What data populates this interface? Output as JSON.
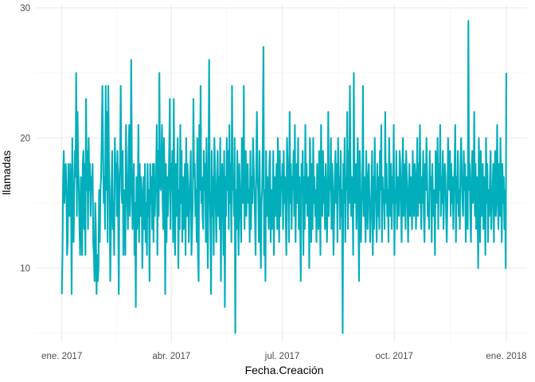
{
  "chart_data": {
    "type": "line",
    "title": "",
    "xlabel": "Fecha.Creación",
    "ylabel": "llamadas",
    "x_type": "date",
    "xlim": [
      "2016-12-10",
      "2018-01-18"
    ],
    "ylim": [
      4.3,
      30.3
    ],
    "grid": true,
    "legend": "none",
    "x_ticks": [
      {
        "date": "2017-01-01",
        "label": "ene. 2017"
      },
      {
        "date": "2017-04-01",
        "label": "abr. 2017"
      },
      {
        "date": "2017-07-01",
        "label": "jul. 2017"
      },
      {
        "date": "2017-10-01",
        "label": "oct. 2017"
      },
      {
        "date": "2018-01-01",
        "label": "ene. 2018"
      }
    ],
    "x_minor_ticks": [
      "2017-02-15",
      "2017-05-16",
      "2017-08-16",
      "2017-11-16"
    ],
    "y_ticks": [
      10,
      20,
      30
    ],
    "y_minor_ticks": [
      5,
      15,
      25
    ],
    "series": [
      {
        "color": "#00aebc",
        "start_date": "2017-01-01",
        "end_date": "2018-01-01",
        "values": [
          8,
          11,
          17,
          19,
          15,
          17,
          18,
          16,
          11,
          12,
          18,
          15,
          14,
          18,
          16,
          8,
          20,
          14,
          12,
          16,
          19,
          17,
          25,
          14,
          22,
          18,
          16,
          13,
          11,
          17,
          14,
          11,
          18,
          19,
          13,
          18,
          11,
          23,
          16,
          19,
          13,
          20,
          16,
          18,
          14,
          17,
          16,
          18,
          12,
          11,
          9,
          15,
          13,
          8,
          11,
          9,
          10,
          16,
          12,
          16,
          17,
          20,
          24,
          19,
          15,
          17,
          13,
          24,
          16,
          22,
          12,
          24,
          18,
          16,
          9,
          13,
          16,
          19,
          13,
          15,
          11,
          20,
          17,
          18,
          14,
          19,
          15,
          8,
          17,
          18,
          24,
          16,
          15,
          19,
          11,
          14,
          16,
          11,
          21,
          17,
          15,
          13,
          19,
          21,
          14,
          16,
          26,
          18,
          13,
          16,
          18,
          11,
          15,
          7,
          17,
          13,
          15,
          21,
          12,
          18,
          14,
          17,
          16,
          10,
          14,
          17,
          13,
          18,
          12,
          15,
          11,
          18,
          14,
          16,
          9,
          18,
          15,
          17,
          13,
          18,
          12,
          18,
          14,
          16,
          17,
          21,
          11,
          19,
          14,
          25,
          17,
          16,
          18,
          21,
          15,
          13,
          20,
          17,
          8,
          18,
          12,
          17,
          14,
          16,
          19,
          23,
          13,
          18,
          16,
          19,
          12,
          23,
          16,
          11,
          18,
          14,
          17,
          20,
          10,
          16,
          13,
          21,
          15,
          19,
          12,
          17,
          13,
          15,
          18,
          11,
          20,
          14,
          18,
          16,
          12,
          15,
          17,
          19,
          11,
          13,
          15,
          23,
          17,
          18,
          14,
          16,
          12,
          20,
          11,
          9,
          21,
          16,
          24,
          15,
          17,
          14,
          13,
          19,
          16,
          18,
          12,
          20,
          15,
          10,
          17,
          26,
          16,
          13,
          8,
          19,
          14,
          17,
          11,
          20,
          18,
          15,
          12,
          16,
          19,
          14,
          17,
          13,
          20,
          9,
          16,
          18,
          15,
          11,
          19,
          7,
          17,
          14,
          20,
          16,
          19,
          13,
          21,
          15,
          18,
          12,
          24,
          16,
          17,
          14,
          20,
          5,
          16,
          13,
          19,
          15,
          11,
          18,
          16,
          14,
          12,
          20,
          17,
          15,
          24,
          13,
          16,
          19,
          14,
          17,
          18,
          15,
          16,
          12,
          19,
          13,
          17,
          15,
          20,
          18,
          16,
          14,
          11,
          18,
          22,
          17,
          16,
          12,
          19,
          14,
          10,
          15,
          16,
          20,
          27,
          11,
          16,
          9,
          19,
          14,
          17,
          15,
          13,
          18,
          19,
          12,
          16,
          13,
          15,
          19,
          11,
          17,
          14,
          16,
          18,
          13,
          20,
          15,
          12,
          19,
          14,
          17,
          16,
          18,
          13,
          19,
          15,
          17,
          14,
          11,
          20,
          18,
          16,
          12,
          22,
          15,
          18,
          13,
          17,
          16,
          19,
          14,
          21,
          12,
          16,
          18,
          15,
          20,
          13,
          17,
          14,
          9,
          18,
          16,
          19,
          11,
          17,
          13,
          21,
          15,
          18,
          14,
          16,
          17,
          10,
          20,
          17,
          12,
          18,
          13,
          20,
          15,
          17,
          14,
          16,
          12,
          18,
          15,
          13,
          19,
          17,
          11,
          21,
          16,
          14,
          19,
          15,
          17,
          13,
          18,
          16,
          12,
          15,
          22,
          14,
          17,
          16,
          20,
          13,
          18,
          16,
          11,
          14,
          17,
          19,
          15,
          18,
          12,
          20,
          16,
          17,
          13,
          19,
          14,
          16,
          5,
          18,
          15,
          20,
          12,
          17,
          16,
          22,
          13,
          19,
          15,
          24,
          18,
          14,
          17,
          16,
          11,
          25,
          15,
          17,
          18,
          13,
          16,
          20,
          14,
          9,
          19,
          17,
          12,
          15,
          16,
          24,
          14,
          17,
          15,
          12,
          19,
          16,
          13,
          17,
          18,
          15,
          12,
          14,
          16,
          19,
          11,
          17,
          13,
          20,
          16,
          15,
          12,
          18,
          14,
          17,
          13,
          19,
          16,
          21,
          12,
          17,
          15,
          16,
          13,
          22,
          15,
          18,
          14,
          16,
          12,
          20,
          17,
          14,
          18,
          13,
          17,
          15,
          21,
          11,
          16,
          15,
          19,
          13,
          17,
          16,
          14,
          19,
          18,
          15,
          12,
          17,
          20,
          14,
          16,
          18,
          13,
          19,
          17,
          15,
          12,
          16,
          18,
          14,
          17,
          15,
          13,
          19,
          16,
          14,
          18,
          17,
          13,
          16,
          20,
          14,
          18,
          15,
          21,
          16,
          13,
          17,
          15,
          19,
          14,
          12,
          18,
          16,
          20,
          17,
          14,
          15,
          13,
          19,
          16,
          17,
          12,
          18,
          15,
          14,
          16,
          11,
          19,
          17,
          15,
          20,
          13,
          18,
          16,
          21,
          14,
          17,
          15,
          19,
          13,
          16,
          18,
          17,
          14,
          12,
          15,
          20,
          17,
          16,
          19,
          14,
          18,
          15,
          17,
          13,
          16,
          18,
          21,
          12,
          17,
          15,
          19,
          14,
          16,
          13,
          18,
          20,
          17,
          15,
          14,
          19,
          16,
          18,
          12,
          17,
          15,
          13,
          29,
          16,
          18,
          14,
          12,
          17,
          19,
          15,
          16,
          22,
          14,
          18,
          13,
          17,
          15,
          10,
          20,
          16,
          12,
          19,
          14,
          15,
          18,
          13,
          17,
          16,
          11,
          20,
          15,
          18,
          12,
          16,
          14,
          17,
          19,
          13,
          15,
          16,
          18,
          12,
          17,
          19,
          14,
          16,
          21,
          15,
          13,
          18,
          14,
          20,
          16,
          12,
          18,
          15,
          17,
          13,
          16,
          10,
          25
        ]
      }
    ]
  }
}
